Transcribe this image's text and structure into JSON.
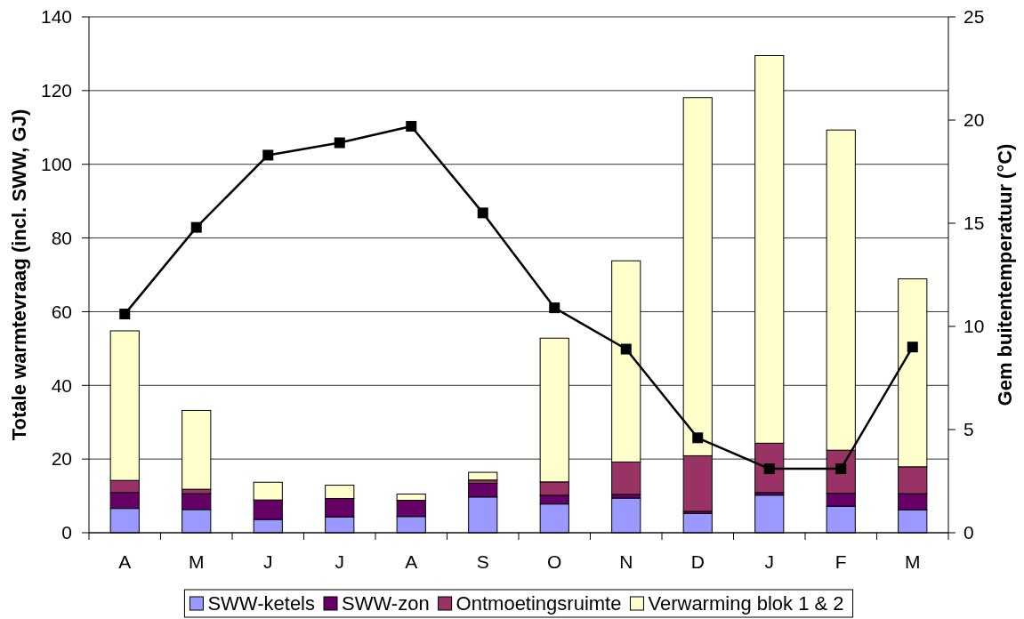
{
  "chart_data": {
    "type": "bar",
    "stacked": true,
    "categories": [
      "A",
      "M",
      "J",
      "J",
      "A",
      "S",
      "O",
      "N",
      "D",
      "J",
      "F",
      "M"
    ],
    "series": [
      {
        "name": "SWW-ketels",
        "color": "#9999ff",
        "values": [
          6.6,
          6.3,
          3.6,
          4.3,
          4.4,
          9.7,
          7.8,
          9.4,
          5.2,
          10.2,
          7.2,
          6.2
        ]
      },
      {
        "name": "SWW-zon",
        "color": "#660066",
        "values": [
          4.3,
          4.3,
          5.3,
          5.0,
          4.4,
          3.7,
          2.4,
          1.0,
          0.6,
          0.7,
          3.5,
          4.4
        ]
      },
      {
        "name": "Ontmoetingsruimte",
        "color": "#993366",
        "values": [
          3.3,
          1.2,
          0,
          0,
          0,
          0.9,
          3.6,
          8.8,
          15.1,
          13.4,
          11.7,
          7.3
        ]
      },
      {
        "name": "Verwarming blok 1 & 2",
        "color": "#ffffcc",
        "values": [
          40.6,
          21.4,
          4.8,
          3.6,
          1.7,
          2.1,
          39.0,
          54.6,
          97.2,
          105.2,
          86.9,
          51.0
        ]
      },
      {
        "type": "line",
        "axis": "y2",
        "color": "#000000",
        "marker": "square",
        "values": [
          10.6,
          14.8,
          18.3,
          18.9,
          19.7,
          15.5,
          10.9,
          8.9,
          4.6,
          3.1,
          3.1,
          9.0
        ]
      }
    ],
    "ylabel": "Totale warmtevraag (incl. SWW, GJ)",
    "y2label": "Gem buitentemperatuur (°C)",
    "ylim": [
      0,
      140
    ],
    "yticks": [
      0,
      20,
      40,
      60,
      80,
      100,
      120,
      140
    ],
    "y2lim": [
      0,
      25
    ],
    "y2ticks": [
      0,
      5,
      10,
      15,
      20,
      25
    ],
    "grid": "y",
    "legend": "bottom"
  }
}
